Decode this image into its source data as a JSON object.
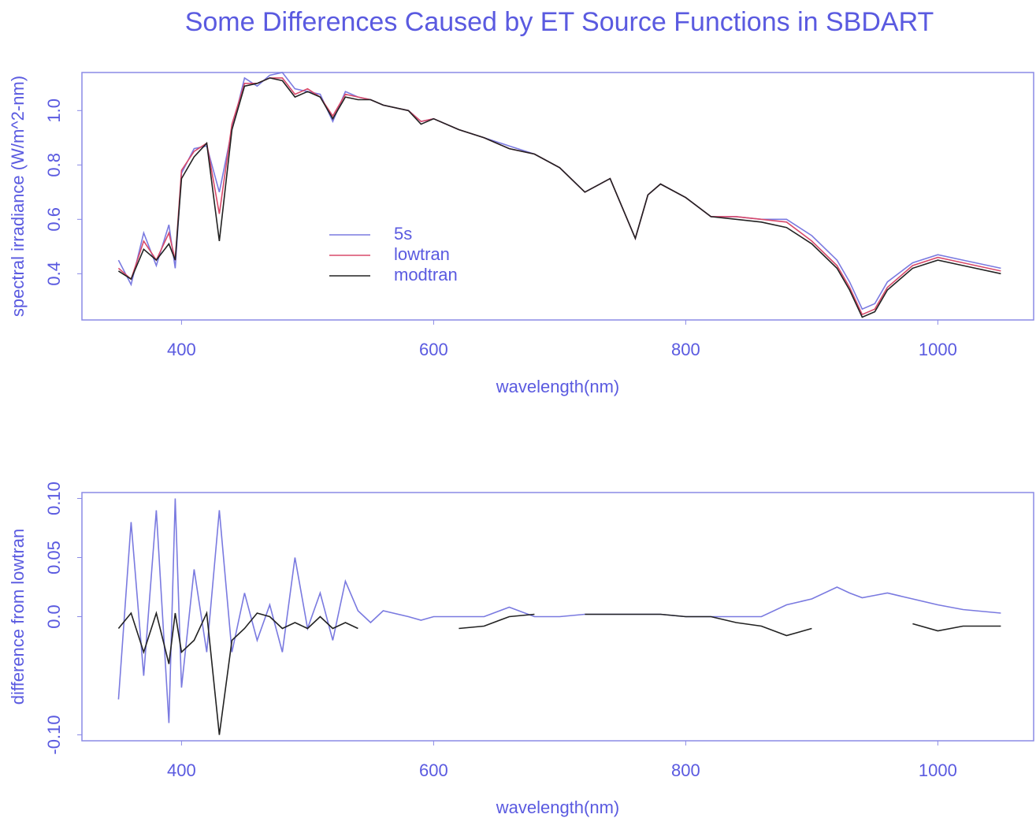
{
  "title": "Some Differences Caused by ET Source Functions in SBDART",
  "chart_data": [
    {
      "type": "line",
      "xlabel": "wavelength(nm)",
      "ylabel": "spectral irradiance (W/m^2-nm)",
      "xlim": [
        321,
        1076
      ],
      "ylim": [
        0.23,
        1.14
      ],
      "xticks": [
        400,
        600,
        800,
        1000
      ],
      "yticks": [
        0.4,
        0.6,
        0.8,
        {
          "value": 1,
          "label": "1.0"
        }
      ],
      "legend": "center",
      "x": [
        350,
        360,
        370,
        380,
        390,
        395,
        400,
        410,
        420,
        430,
        440,
        450,
        460,
        470,
        480,
        490,
        500,
        510,
        520,
        530,
        540,
        550,
        560,
        580,
        590,
        600,
        620,
        640,
        660,
        680,
        700,
        720,
        740,
        760,
        770,
        780,
        800,
        820,
        840,
        860,
        880,
        900,
        920,
        930,
        940,
        950,
        960,
        980,
        1000,
        1020,
        1050
      ],
      "series": [
        {
          "name": "5s",
          "color": "#7a7ae0",
          "values": [
            0.45,
            0.36,
            0.55,
            0.43,
            0.58,
            0.42,
            0.77,
            0.86,
            0.87,
            0.7,
            0.93,
            1.12,
            1.09,
            1.13,
            1.14,
            1.08,
            1.07,
            1.06,
            0.96,
            1.07,
            1.05,
            1.04,
            1.02,
            1.0,
            0.96,
            0.97,
            0.93,
            0.9,
            0.87,
            0.84,
            0.79,
            0.7,
            0.75,
            0.53,
            0.69,
            0.73,
            0.68,
            0.61,
            0.61,
            0.6,
            0.6,
            0.54,
            0.45,
            0.37,
            0.27,
            0.29,
            0.37,
            0.44,
            0.47,
            0.45,
            0.42
          ]
        },
        {
          "name": "lowtran",
          "color": "#d84a6a",
          "values": [
            0.42,
            0.38,
            0.52,
            0.45,
            0.55,
            0.45,
            0.78,
            0.85,
            0.88,
            0.62,
            0.95,
            1.1,
            1.1,
            1.12,
            1.12,
            1.06,
            1.08,
            1.05,
            0.98,
            1.06,
            1.05,
            1.04,
            1.02,
            1.0,
            0.96,
            0.97,
            0.93,
            0.9,
            0.86,
            0.84,
            0.79,
            0.7,
            0.75,
            0.53,
            0.69,
            0.73,
            0.68,
            0.61,
            0.61,
            0.6,
            0.59,
            0.52,
            0.43,
            0.35,
            0.25,
            0.27,
            0.35,
            0.43,
            0.46,
            0.44,
            0.41
          ]
        },
        {
          "name": "modtran",
          "color": "#222222",
          "values": [
            0.41,
            0.38,
            0.49,
            0.45,
            0.51,
            0.45,
            0.75,
            0.83,
            0.88,
            0.52,
            0.93,
            1.09,
            1.1,
            1.12,
            1.11,
            1.05,
            1.07,
            1.05,
            0.97,
            1.05,
            1.04,
            1.04,
            1.02,
            1.0,
            0.95,
            0.97,
            0.93,
            0.9,
            0.86,
            0.84,
            0.79,
            0.7,
            0.75,
            0.53,
            0.69,
            0.73,
            0.68,
            0.61,
            0.6,
            0.59,
            0.57,
            0.51,
            0.42,
            0.34,
            0.24,
            0.26,
            0.34,
            0.42,
            0.45,
            0.43,
            0.4
          ]
        }
      ]
    },
    {
      "type": "line",
      "xlabel": "wavelength(nm)",
      "ylabel": "difference from lowtran",
      "xlim": [
        321,
        1076
      ],
      "ylim": [
        -0.105,
        0.105
      ],
      "xticks": [
        400,
        600,
        800,
        1000
      ],
      "yticks": [
        {
          "value": -0.1,
          "label": "-0.10"
        },
        {
          "value": 0,
          "label": "0.0"
        },
        0.05,
        {
          "value": 0.1,
          "label": "0.10"
        }
      ],
      "x": [
        350,
        360,
        370,
        380,
        390,
        395,
        400,
        410,
        420,
        430,
        440,
        450,
        460,
        470,
        480,
        490,
        500,
        510,
        520,
        530,
        540,
        550,
        560,
        580,
        590,
        600,
        620,
        640,
        660,
        680,
        700,
        720,
        740,
        760,
        770,
        780,
        800,
        820,
        840,
        860,
        880,
        900,
        920,
        930,
        940,
        950,
        960,
        980,
        1000,
        1020,
        1050
      ],
      "series": [
        {
          "color": "#7a7ae0",
          "values": [
            -0.07,
            0.08,
            -0.05,
            0.09,
            -0.09,
            0.1,
            -0.06,
            0.04,
            -0.03,
            0.09,
            -0.03,
            0.02,
            -0.02,
            0.01,
            -0.03,
            0.05,
            -0.01,
            0.02,
            -0.02,
            0.03,
            0.005,
            -0.005,
            0.005,
            0,
            -0.003,
            0,
            0,
            0,
            0.008,
            0,
            0,
            0.002,
            0.002,
            0.002,
            0.002,
            0.002,
            0,
            0,
            0,
            0,
            0.01,
            0.015,
            0.025,
            0.02,
            0.016,
            0.018,
            0.02,
            0.015,
            0.01,
            0.006,
            0.003
          ]
        },
        {
          "color": "#222222",
          "values": [
            -0.01,
            0.003,
            -0.03,
            0.003,
            -0.04,
            0.003,
            -0.03,
            -0.02,
            0.003,
            -0.1,
            -0.02,
            -0.01,
            0.003,
            0,
            -0.01,
            -0.005,
            -0.01,
            0,
            -0.01,
            -0.005,
            -0.01,
            null,
            null,
            null,
            null,
            null,
            -0.01,
            -0.008,
            0,
            0.002,
            null,
            0.002,
            0.002,
            0.002,
            0.002,
            0.002,
            0,
            0,
            -0.005,
            -0.008,
            -0.016,
            -0.01,
            null,
            null,
            null,
            null,
            null,
            -0.006,
            -0.012,
            -0.008,
            -0.008
          ]
        }
      ]
    }
  ]
}
